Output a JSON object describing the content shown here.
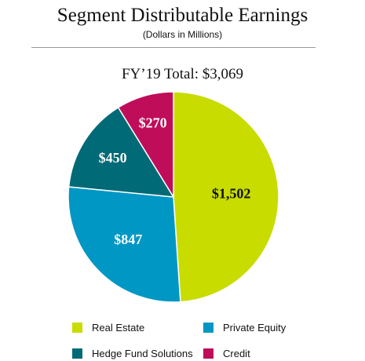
{
  "header": {
    "title": "Segment Distributable Earnings",
    "subtitle": "(Dollars in Millions)"
  },
  "chart_data": {
    "type": "pie",
    "title": "FY’19 Total: $3,069",
    "start_angle_deg": 0,
    "direction": "clockwise",
    "slices": [
      {
        "name": "Real Estate",
        "value": 1502,
        "label": "$1,502",
        "color": "#c8dc00",
        "label_color": "#111111"
      },
      {
        "name": "Private Equity",
        "value": 847,
        "label": "$847",
        "color": "#0097c4",
        "label_color": "#ffffff"
      },
      {
        "name": "Hedge Fund Solutions",
        "value": 450,
        "label": "$450",
        "color": "#006a76",
        "label_color": "#ffffff"
      },
      {
        "name": "Credit",
        "value": 270,
        "label": "$270",
        "color": "#bf0d5a",
        "label_color": "#ffffff"
      }
    ],
    "legend_position": "bottom",
    "legend_rows": [
      [
        "Real Estate",
        "Private Equity"
      ],
      [
        "Hedge Fund Solutions",
        "Credit"
      ]
    ]
  }
}
